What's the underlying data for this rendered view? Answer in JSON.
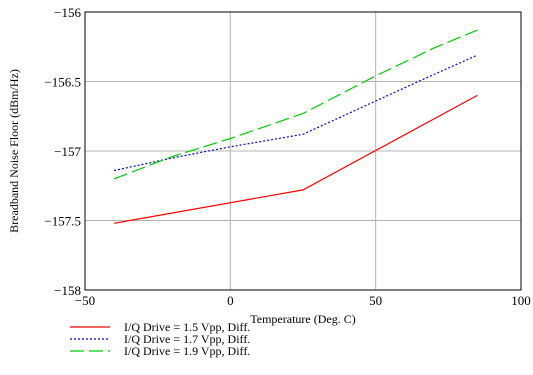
{
  "chart_data": {
    "type": "line",
    "xlabel": "Temperature (Deg. C)",
    "ylabel": "Breadband Noise Floor (dBm/Hz)",
    "xlim": [
      -50,
      100
    ],
    "ylim": [
      -158,
      -156
    ],
    "x_ticks": [
      -50,
      0,
      50,
      100
    ],
    "x_tick_labels": [
      "−50",
      "0",
      "50",
      "100"
    ],
    "y_ticks": [
      -156,
      -156.5,
      -157,
      -157.5,
      -158
    ],
    "y_tick_labels": [
      "−156",
      "−156.5",
      "−157",
      "−157.5",
      "−158"
    ],
    "grid": true,
    "legend_position": "bottom",
    "series": [
      {
        "name": "I/Q Drive = 1.5 Vpp, Diff.",
        "color": "#ff0000",
        "style": "solid",
        "x": [
          -40,
          25,
          85
        ],
        "y": [
          -157.52,
          -157.28,
          -156.6
        ]
      },
      {
        "name": "I/Q Drive = 1.7 Vpp, Diff.",
        "color": "#0000cc",
        "style": "dotted",
        "x": [
          -40,
          -20,
          0,
          25,
          50,
          70,
          85
        ],
        "y": [
          -157.14,
          -157.05,
          -156.97,
          -156.88,
          -156.64,
          -156.45,
          -156.31
        ]
      },
      {
        "name": "I/Q Drive = 1.9 Vpp, Diff.",
        "color": "#00cc00",
        "style": "dashed",
        "x": [
          -40,
          -20,
          0,
          25,
          50,
          70,
          85
        ],
        "y": [
          -157.2,
          -157.04,
          -156.91,
          -156.73,
          -156.46,
          -156.26,
          -156.13
        ]
      }
    ]
  }
}
